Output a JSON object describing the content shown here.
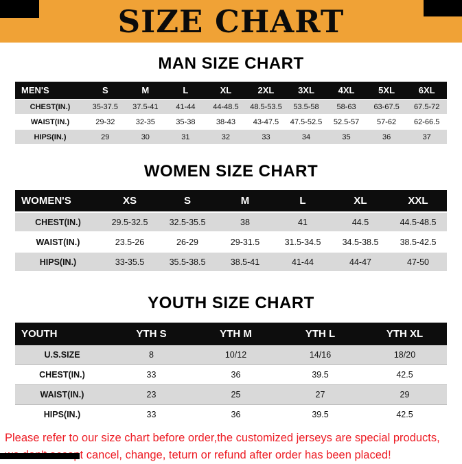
{
  "banner": {
    "title": "SIZE CHART"
  },
  "sections": [
    {
      "heading": "MAN SIZE CHART",
      "corner_label": "MEN'S",
      "columns": [
        "S",
        "M",
        "L",
        "XL",
        "2XL",
        "3XL",
        "4XL",
        "5XL",
        "6XL"
      ],
      "rows": [
        {
          "label": "CHEST(IN.)",
          "values": [
            "35-37.5",
            "37.5-41",
            "41-44",
            "44-48.5",
            "48.5-53.5",
            "53.5-58",
            "58-63",
            "63-67.5",
            "67.5-72"
          ]
        },
        {
          "label": "WAIST(IN.)",
          "values": [
            "29-32",
            "32-35",
            "35-38",
            "38-43",
            "43-47.5",
            "47.5-52.5",
            "52.5-57",
            "57-62",
            "62-66.5"
          ]
        },
        {
          "label": "HIPS(IN.)",
          "values": [
            "29",
            "30",
            "31",
            "32",
            "33",
            "34",
            "35",
            "36",
            "37"
          ]
        }
      ]
    },
    {
      "heading": "WOMEN SIZE CHART",
      "corner_label": "WOMEN'S",
      "columns": [
        "XS",
        "S",
        "M",
        "L",
        "XL",
        "XXL"
      ],
      "rows": [
        {
          "label": "CHEST(IN.)",
          "values": [
            "29.5-32.5",
            "32.5-35.5",
            "38",
            "41",
            "44.5",
            "44.5-48.5"
          ]
        },
        {
          "label": "WAIST(IN.)",
          "values": [
            "23.5-26",
            "26-29",
            "29-31.5",
            "31.5-34.5",
            "34.5-38.5",
            "38.5-42.5"
          ]
        },
        {
          "label": "HIPS(IN.)",
          "values": [
            "33-35.5",
            "35.5-38.5",
            "38.5-41",
            "41-44",
            "44-47",
            "47-50"
          ]
        }
      ]
    },
    {
      "heading": "YOUTH SIZE CHART",
      "corner_label": "YOUTH",
      "columns": [
        "YTH S",
        "YTH M",
        "YTH L",
        "YTH XL"
      ],
      "rows": [
        {
          "label": "U.S.SIZE",
          "values": [
            "8",
            "10/12",
            "14/16",
            "18/20"
          ]
        },
        {
          "label": "CHEST(IN.)",
          "values": [
            "33",
            "36",
            "39.5",
            "42.5"
          ]
        },
        {
          "label": "WAIST(IN.)",
          "values": [
            "23",
            "25",
            "27",
            "29"
          ]
        },
        {
          "label": "HIPS(IN.)",
          "values": [
            "33",
            "36",
            "39.5",
            "42.5"
          ]
        }
      ]
    }
  ],
  "footer": {
    "line1": "Please refer to our size chart before order,the customized jerseys are special products,",
    "line2": "we don't accept cancel, change, teturn or refund after order has been placed!"
  },
  "colors": {
    "banner_bg": "#F0A236",
    "header_bg": "#0D0D0D",
    "row_alt_bg": "#D9D9D9",
    "footer_text": "#ED1C24"
  }
}
